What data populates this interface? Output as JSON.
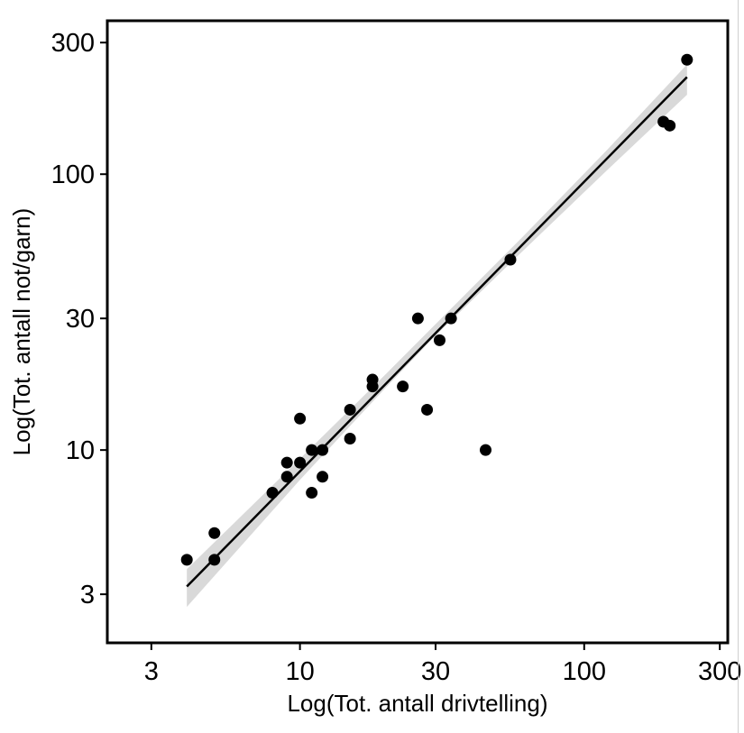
{
  "chart_data": {
    "type": "scatter",
    "title": "",
    "xlabel": "Log(Tot. antall drivtelling)",
    "ylabel": "Log(Tot. antall not/garn)",
    "x_scale": "log",
    "y_scale": "log",
    "xlim": [
      2.1,
      320
    ],
    "ylim": [
      2.0,
      360
    ],
    "x_ticks": [
      3,
      10,
      30,
      100,
      300
    ],
    "y_ticks": [
      3,
      10,
      30,
      100,
      300
    ],
    "x_tick_labels": [
      "3",
      "10",
      "30",
      "100",
      "300"
    ],
    "y_tick_labels": [
      "3",
      "10",
      "30",
      "100",
      "300"
    ],
    "grid": false,
    "legend": "none",
    "colors": {
      "points": "#000000",
      "fit_line": "#000000",
      "confidence_band": "#d9d9d9",
      "frame": "#000000"
    },
    "series": [
      {
        "kind": "points",
        "points": [
          {
            "x": 4,
            "y": 4
          },
          {
            "x": 5,
            "y": 5
          },
          {
            "x": 5,
            "y": 4
          },
          {
            "x": 8,
            "y": 7
          },
          {
            "x": 9,
            "y": 9
          },
          {
            "x": 9,
            "y": 8
          },
          {
            "x": 10,
            "y": 13
          },
          {
            "x": 10,
            "y": 9
          },
          {
            "x": 11,
            "y": 10
          },
          {
            "x": 11,
            "y": 7
          },
          {
            "x": 12,
            "y": 10
          },
          {
            "x": 12,
            "y": 8
          },
          {
            "x": 15,
            "y": 14
          },
          {
            "x": 15,
            "y": 11
          },
          {
            "x": 18,
            "y": 18
          },
          {
            "x": 18,
            "y": 17
          },
          {
            "x": 23,
            "y": 17
          },
          {
            "x": 26,
            "y": 30
          },
          {
            "x": 28,
            "y": 14
          },
          {
            "x": 31,
            "y": 25
          },
          {
            "x": 34,
            "y": 30
          },
          {
            "x": 45,
            "y": 10
          },
          {
            "x": 55,
            "y": 49
          },
          {
            "x": 190,
            "y": 155
          },
          {
            "x": 200,
            "y": 150
          },
          {
            "x": 230,
            "y": 260
          }
        ]
      },
      {
        "kind": "fit",
        "line": [
          {
            "x": 4,
            "y": 3.2
          },
          {
            "x": 230,
            "y": 225
          }
        ],
        "band": [
          {
            "x": 4,
            "y_low": 2.7,
            "y_high": 3.7
          },
          {
            "x": 10,
            "y_low": 7.8,
            "y_high": 9.3
          },
          {
            "x": 20,
            "y_low": 16.8,
            "y_high": 18.8
          },
          {
            "x": 30,
            "y_low": 26.0,
            "y_high": 28.6
          },
          {
            "x": 60,
            "y_low": 52.0,
            "y_high": 58.5
          },
          {
            "x": 120,
            "y_low": 103,
            "y_high": 122
          },
          {
            "x": 230,
            "y_low": 194,
            "y_high": 250
          }
        ]
      }
    ]
  }
}
